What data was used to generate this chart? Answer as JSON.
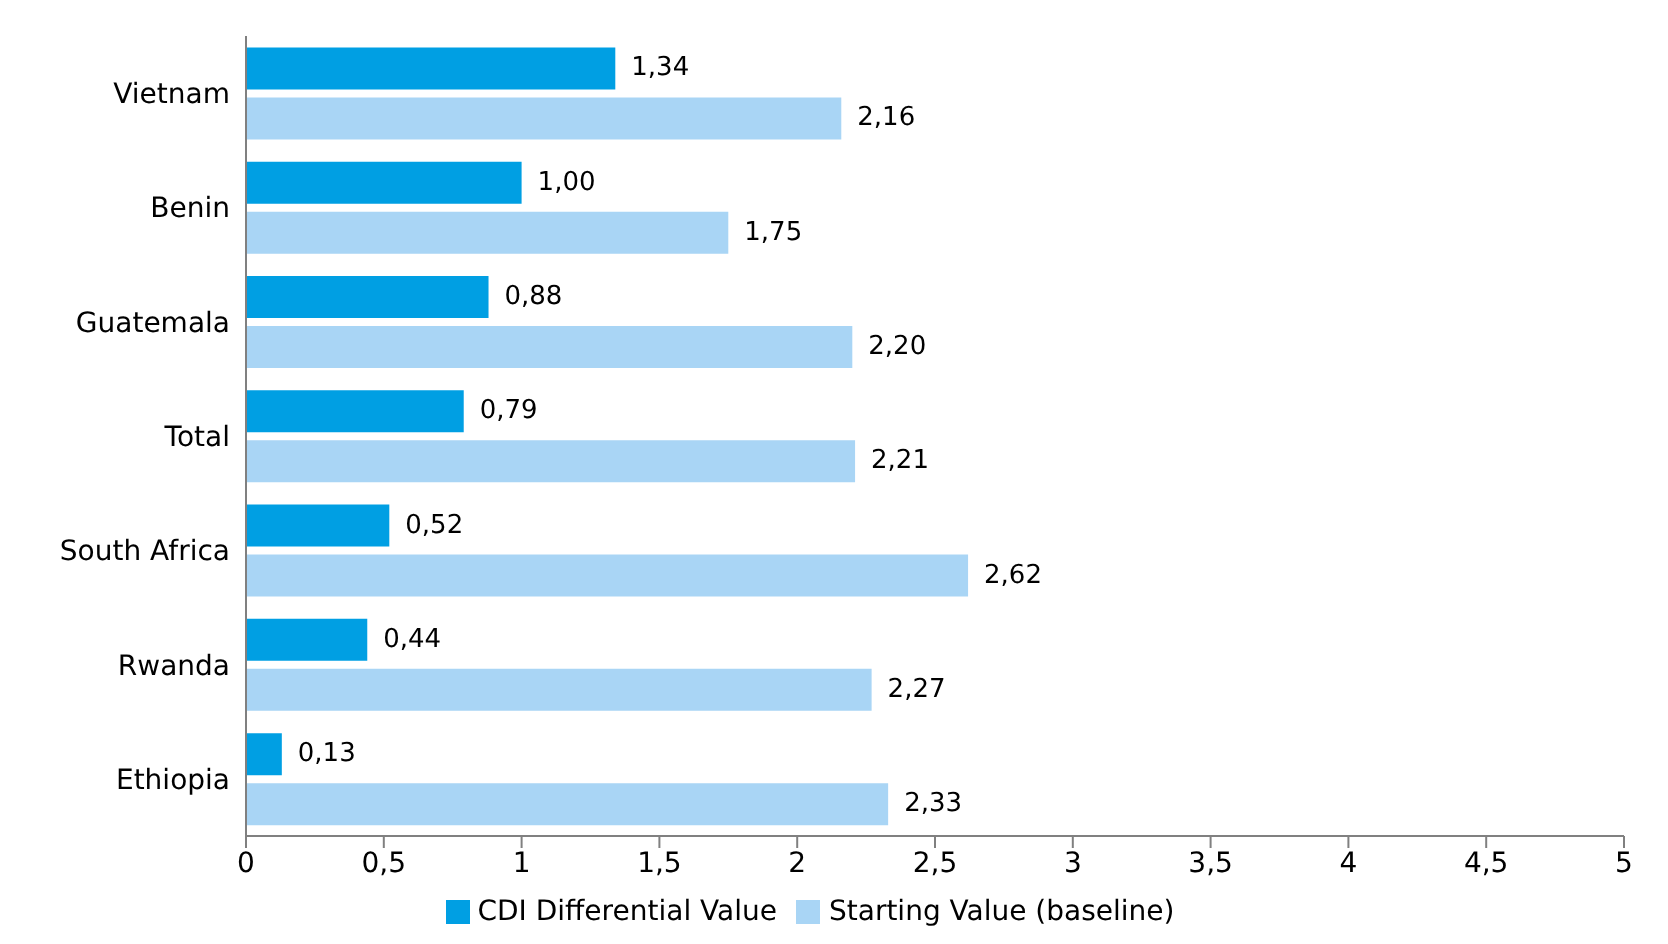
{
  "chart_data": {
    "type": "bar",
    "orientation": "horizontal",
    "categories": [
      "Vietnam",
      "Benin",
      "Guatemala",
      "Total",
      "South Africa",
      "Rwanda",
      "Ethiopia"
    ],
    "series": [
      {
        "name": "CDI Differential Value",
        "color": "#009fe3",
        "values": [
          1.34,
          1.0,
          0.88,
          0.79,
          0.52,
          0.44,
          0.13
        ],
        "value_labels": [
          "1,34",
          "1,00",
          "0,88",
          "0,79",
          "0,52",
          "0,44",
          "0,13"
        ]
      },
      {
        "name": "Starting Value (baseline)",
        "color": "#a9d5f5",
        "values": [
          2.16,
          1.75,
          2.2,
          2.21,
          2.62,
          2.27,
          2.33
        ],
        "value_labels": [
          "2,16",
          "1,75",
          "2,20",
          "2,21",
          "2,62",
          "2,27",
          "2,33"
        ]
      }
    ],
    "xlim": [
      0,
      5
    ],
    "xticks": [
      0,
      {
        "value": 0.5,
        "label": "0,5"
      },
      1,
      {
        "value": 1.5,
        "label": "1,5"
      },
      2,
      {
        "value": 2.5,
        "label": "2,5"
      },
      3,
      {
        "value": 3.5,
        "label": "3,5"
      },
      4,
      {
        "value": 4.5,
        "label": "4,5"
      },
      5
    ],
    "grid": false,
    "legend": "bottom"
  }
}
